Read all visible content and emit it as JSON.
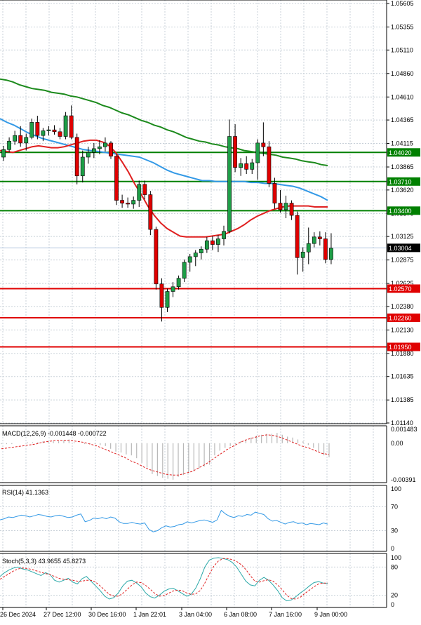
{
  "chart_data": {
    "type": "candlestick",
    "main": {
      "y_ticks": [
        "1.05605",
        "1.05355",
        "1.05110",
        "1.04860",
        "1.04610",
        "1.04365",
        "1.04115",
        "1.03865",
        "1.03620",
        "1.03370",
        "1.03125",
        "1.02875",
        "1.02625",
        "1.02380",
        "1.02130",
        "1.01880",
        "1.01635",
        "1.01385",
        "1.01140"
      ],
      "ylim": [
        1.0114,
        1.05605
      ],
      "current_price": "1.03004",
      "levels": [
        {
          "label": "1.04020",
          "value": 1.0402,
          "color": "#008000"
        },
        {
          "label": "1.03710",
          "value": 1.0371,
          "color": "#008000"
        },
        {
          "label": "1.03400",
          "value": 1.034,
          "color": "#008000"
        },
        {
          "label": "1.02570",
          "value": 1.0257,
          "color": "#e00000"
        },
        {
          "label": "1.02260",
          "value": 1.0226,
          "color": "#e00000"
        },
        {
          "label": "1.01950",
          "value": 1.0195,
          "color": "#e00000"
        }
      ],
      "candles": [
        [
          1.0395,
          1.0405,
          1.0388,
          1.0397
        ],
        [
          1.0397,
          1.0409,
          1.0393,
          1.0405
        ],
        [
          1.0405,
          1.0418,
          1.0402,
          1.0414
        ],
        [
          1.0414,
          1.0425,
          1.041,
          1.042
        ],
        [
          1.042,
          1.043,
          1.0408,
          1.0412
        ],
        [
          1.0412,
          1.0422,
          1.0404,
          1.0418
        ],
        [
          1.0418,
          1.0438,
          1.0416,
          1.0434
        ],
        [
          1.0434,
          1.0441,
          1.0416,
          1.042
        ],
        [
          1.042,
          1.0428,
          1.0414,
          1.0425
        ],
        [
          1.0425,
          1.043,
          1.042,
          1.0426
        ],
        [
          1.0426,
          1.0431,
          1.0421,
          1.0424
        ],
        [
          1.0424,
          1.0428,
          1.0416,
          1.0419
        ],
        [
          1.0419,
          1.0445,
          1.0416,
          1.0441
        ],
        [
          1.0441,
          1.0452,
          1.0416,
          1.0418
        ],
        [
          1.0418,
          1.0422,
          1.0368,
          1.0377
        ],
        [
          1.0377,
          1.0404,
          1.037,
          1.0397
        ],
        [
          1.0397,
          1.0408,
          1.039,
          1.0402
        ],
        [
          1.0402,
          1.0412,
          1.0396,
          1.0406
        ],
        [
          1.0406,
          1.0415,
          1.04,
          1.0408
        ],
        [
          1.0408,
          1.0418,
          1.0403,
          1.0412
        ],
        [
          1.0412,
          1.0414,
          1.0395,
          1.0398
        ],
        [
          1.0398,
          1.04,
          1.0346,
          1.0351
        ],
        [
          1.0351,
          1.0357,
          1.0343,
          1.0348
        ],
        [
          1.0348,
          1.0354,
          1.0343,
          1.0347
        ],
        [
          1.0347,
          1.0355,
          1.0342,
          1.0351
        ],
        [
          1.0351,
          1.0372,
          1.0344,
          1.0368
        ],
        [
          1.0368,
          1.0372,
          1.0352,
          1.0357
        ],
        [
          1.0357,
          1.0361,
          1.0314,
          1.032
        ],
        [
          1.032,
          1.0323,
          1.0256,
          1.0262
        ],
        [
          1.0262,
          1.0268,
          1.0222,
          1.0237
        ],
        [
          1.0237,
          1.0257,
          1.0232,
          1.0254
        ],
        [
          1.0254,
          1.0264,
          1.0248,
          1.0259
        ],
        [
          1.0259,
          1.0271,
          1.0256,
          1.0268
        ],
        [
          1.0268,
          1.0288,
          1.0264,
          1.0285
        ],
        [
          1.0285,
          1.0294,
          1.0275,
          1.0291
        ],
        [
          1.0291,
          1.0298,
          1.0281,
          1.0295
        ],
        [
          1.0295,
          1.0302,
          1.0288,
          1.0299
        ],
        [
          1.0299,
          1.0312,
          1.0295,
          1.0308
        ],
        [
          1.0308,
          1.0313,
          1.0298,
          1.0304
        ],
        [
          1.0304,
          1.0314,
          1.0296,
          1.031
        ],
        [
          1.031,
          1.0324,
          1.0303,
          1.0318
        ],
        [
          1.0318,
          1.0437,
          1.0316,
          1.0419
        ],
        [
          1.0419,
          1.0432,
          1.0381,
          1.0386
        ],
        [
          1.0386,
          1.0396,
          1.0377,
          1.039
        ],
        [
          1.039,
          1.0398,
          1.0379,
          1.0384
        ],
        [
          1.0384,
          1.0395,
          1.0379,
          1.0391
        ],
        [
          1.0391,
          1.0416,
          1.0373,
          1.0412
        ],
        [
          1.0412,
          1.0434,
          1.0398,
          1.0408
        ],
        [
          1.0408,
          1.0414,
          1.0365,
          1.0369
        ],
        [
          1.0369,
          1.0375,
          1.0342,
          1.0348
        ],
        [
          1.0348,
          1.0362,
          1.0338,
          1.0341
        ],
        [
          1.0341,
          1.0356,
          1.0332,
          1.0348
        ],
        [
          1.0348,
          1.0351,
          1.033,
          1.0335
        ],
        [
          1.0335,
          1.0339,
          1.0272,
          1.029
        ],
        [
          1.029,
          1.0301,
          1.0275,
          1.0296
        ],
        [
          1.0296,
          1.0322,
          1.0283,
          1.0305
        ],
        [
          1.0305,
          1.0317,
          1.0301,
          1.0312
        ],
        [
          1.0312,
          1.0318,
          1.0303,
          1.031
        ],
        [
          1.031,
          1.0317,
          1.0284,
          1.0288
        ],
        [
          1.0288,
          1.0316,
          1.0283,
          1.03
        ]
      ],
      "ma_green": [
        1.048,
        1.0479,
        1.0477,
        1.0474,
        1.0472,
        1.047,
        1.0469,
        1.0468,
        1.0466,
        1.0465,
        1.0464,
        1.0462,
        1.0461,
        1.0459,
        1.0457,
        1.0455,
        1.0452,
        1.045,
        1.0447,
        1.0444,
        1.0442,
        1.0439,
        1.0436,
        1.0434,
        1.0431,
        1.0429,
        1.0426,
        1.0424,
        1.0421,
        1.0418,
        1.0416,
        1.0414,
        1.0413,
        1.0411,
        1.041,
        1.0408,
        1.0407,
        1.0406,
        1.0404,
        1.0403,
        1.0402,
        1.0401,
        1.04,
        1.0399,
        1.0397,
        1.0396,
        1.0395,
        1.0393,
        1.0392,
        1.0391,
        1.0389,
        1.0388
      ],
      "ma_blue": [
        1.0438,
        1.0434,
        1.0431,
        1.0427,
        1.0423,
        1.042,
        1.0417,
        1.0415,
        1.0413,
        1.0411,
        1.0409,
        1.0407,
        1.0405,
        1.0404,
        1.0403,
        1.0402,
        1.0401,
        1.04,
        1.0399,
        1.0398,
        1.0397,
        1.0394,
        1.0391,
        1.0387,
        1.0383,
        1.038,
        1.0378,
        1.0376,
        1.0374,
        1.0372,
        1.0372,
        1.0371,
        1.0371,
        1.0371,
        1.0371,
        1.0371,
        1.037,
        1.037,
        1.0369,
        1.0369,
        1.0368,
        1.0367,
        1.0366,
        1.0364,
        1.0361,
        1.0358,
        1.0355,
        1.0351
      ],
      "ma_red": [
        1.0404,
        1.0403,
        1.0402,
        1.0404,
        1.0406,
        1.0408,
        1.0409,
        1.0408,
        1.0407,
        1.0407,
        1.0408,
        1.041,
        1.0412,
        1.0414,
        1.0415,
        1.0415,
        1.0413,
        1.0409,
        1.0402,
        1.0392,
        1.0381,
        1.0368,
        1.0357,
        1.0345,
        1.0335,
        1.0327,
        1.0321,
        1.0317,
        1.0313,
        1.0312,
        1.0312,
        1.0312,
        1.0312,
        1.0313,
        1.0314,
        1.0315,
        1.0318,
        1.0321,
        1.0325,
        1.033,
        1.0334,
        1.0337,
        1.034,
        1.0342,
        1.0344,
        1.0345,
        1.0345,
        1.0345,
        1.0345,
        1.0344,
        1.0344,
        1.0344
      ]
    },
    "macd": {
      "label": "MACD(12,26,9) -0.001448 -0.000722",
      "y_ticks": [
        "0.001483",
        "0.00",
        "-0.00391"
      ],
      "ylim": [
        -0.00391,
        0.001483
      ],
      "hist": [
        -0.0001,
        -0.0001,
        -0.0001,
        0,
        0,
        0.0001,
        0.0001,
        0.0001,
        0.0002,
        0.0002,
        0.0002,
        0.0002,
        0.0003,
        0.0004,
        0.0001,
        0,
        -0.0001,
        -0.0001,
        -0.0001,
        -0.0002,
        -0.0003,
        -0.0006,
        -0.0009,
        -0.001,
        -0.0012,
        -0.0013,
        -0.0016,
        -0.0021,
        -0.0026,
        -0.0033,
        -0.0035,
        -0.0037,
        -0.0038,
        -0.0039,
        -0.0036,
        -0.0034,
        -0.0032,
        -0.003,
        -0.0027,
        -0.0025,
        -0.0023,
        -0.0013,
        -0.0008,
        -0.0005,
        -0.0003,
        -0.0001,
        0.0002,
        0.0004,
        0.0006,
        0.0008,
        0.0009,
        0.001,
        0.001,
        0.0011,
        0.0009,
        0.0007,
        0.0006,
        0.0004,
        0.0002,
        -0.0002,
        -0.0005,
        -0.0009,
        -0.0013,
        -0.0015
      ],
      "signal": [
        -0.0006,
        -0.0005,
        -0.0004,
        -0.0003,
        -0.0002,
        -0.0001,
        0.0001,
        0.0002,
        0.0003,
        0.0003,
        0.0003,
        0.0002,
        0.0001,
        -0.0001,
        -0.0003,
        -0.0006,
        -0.0009,
        -0.0012,
        -0.0015,
        -0.0019,
        -0.0022,
        -0.0026,
        -0.0029,
        -0.0031,
        -0.0033,
        -0.0034,
        -0.0034,
        -0.0032,
        -0.003,
        -0.0026,
        -0.0022,
        -0.0017,
        -0.0012,
        -0.0007,
        -0.0003,
        0.0001,
        0.0004,
        0.0006,
        0.0008,
        0.0009,
        0.0008,
        0.0006,
        0.0003,
        0.0,
        -0.0003,
        -0.0005,
        -0.0008,
        -0.0011,
        -0.0012
      ]
    },
    "rsi": {
      "label": "RSI(14) 41.1363",
      "y_ticks": [
        "100",
        "70",
        "30",
        "0"
      ],
      "ylim": [
        0,
        100
      ],
      "values": [
        48,
        50,
        53,
        52,
        54,
        56,
        55,
        53,
        55,
        57,
        56,
        54,
        53,
        55,
        56,
        54,
        52,
        53,
        56,
        58,
        45,
        47,
        51,
        50,
        52,
        50,
        53,
        51,
        45,
        42,
        42,
        44,
        42,
        41,
        43,
        32,
        28,
        30,
        35,
        38,
        36,
        37,
        40,
        41,
        45,
        43,
        45,
        47,
        48,
        46,
        44,
        48,
        64,
        58,
        54,
        52,
        55,
        54,
        57,
        56,
        61,
        59,
        57,
        50,
        46,
        47,
        44,
        41,
        44,
        45,
        42,
        43,
        40,
        42,
        41,
        40,
        43,
        41
      ]
    },
    "stoch": {
      "label": "Stoch(5,3,3) 43.9655 45.8273",
      "y_ticks": [
        "100",
        "80",
        "20",
        "0"
      ],
      "ylim": [
        0,
        100
      ],
      "k": [
        60,
        68,
        74,
        78,
        80,
        76,
        74,
        70,
        66,
        62,
        68,
        64,
        52,
        48,
        52,
        56,
        48,
        44,
        55,
        60,
        50,
        40,
        30,
        18,
        12,
        15,
        25,
        40,
        50,
        52,
        46,
        38,
        25,
        17,
        14,
        20,
        28,
        33,
        35,
        30,
        24,
        18,
        22,
        35,
        55,
        80,
        95,
        99,
        100,
        98,
        96,
        90,
        80,
        65,
        50,
        42,
        40,
        52,
        58,
        52,
        42,
        30,
        15,
        8,
        10,
        17,
        25,
        32,
        40,
        47,
        49,
        46,
        45
      ],
      "d": [
        54,
        60,
        66,
        72,
        76,
        78,
        77,
        75,
        72,
        69,
        66,
        64,
        60,
        56,
        54,
        53,
        52,
        50,
        50,
        52,
        52,
        48,
        40,
        31,
        22,
        18,
        18,
        24,
        33,
        42,
        48,
        47,
        41,
        33,
        24,
        18,
        19,
        24,
        29,
        31,
        30,
        25,
        22,
        23,
        30,
        46,
        65,
        82,
        93,
        98,
        98,
        96,
        92,
        85,
        75,
        62,
        50,
        48,
        51,
        53,
        50,
        42,
        32,
        20,
        13,
        12,
        16,
        24,
        31,
        38,
        44,
        46,
        46
      ]
    },
    "x_labels": [
      "26 Dec 2024",
      "27 Dec 12:00",
      "30 Dec 16:00",
      "1 Jan 22:01",
      "3 Jan 04:00",
      "6 Jan 08:00",
      "7 Jan 16:00",
      "9 Jan 00:00"
    ]
  }
}
